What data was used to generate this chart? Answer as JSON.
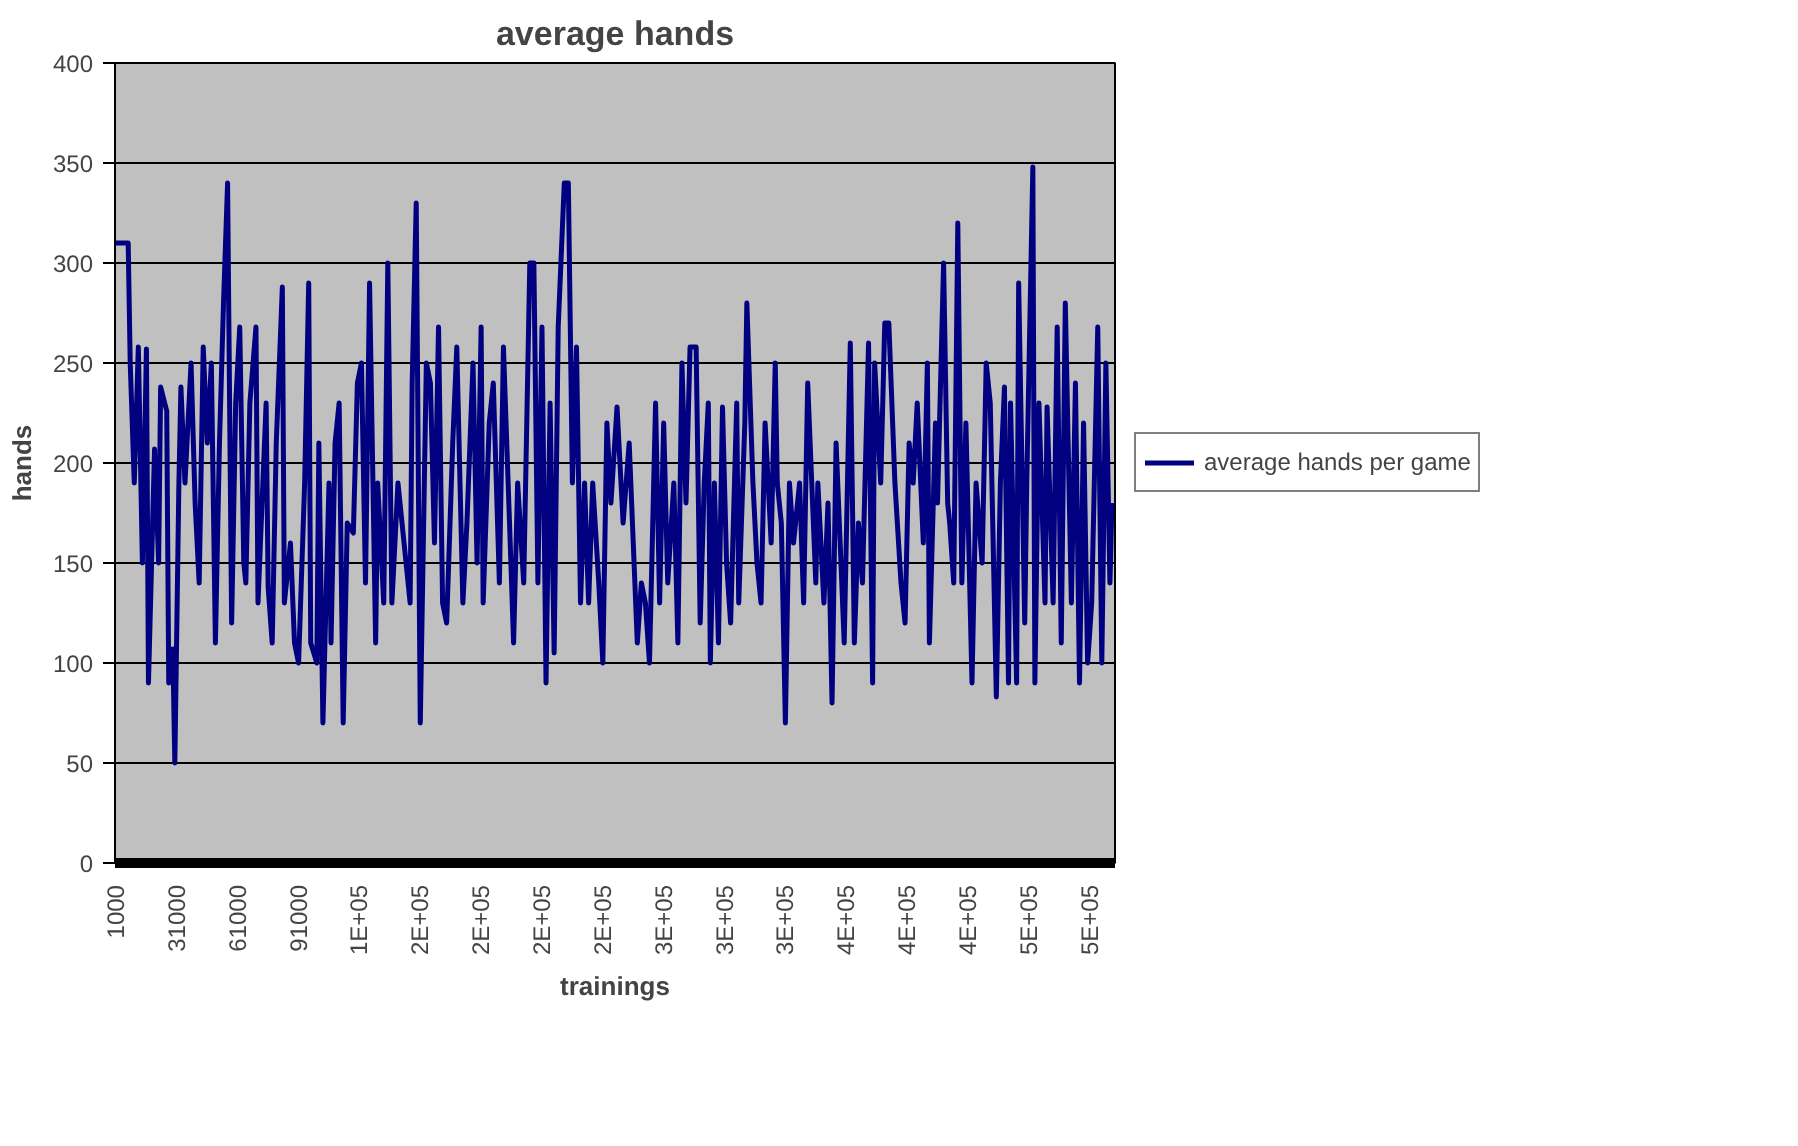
{
  "chart_data": {
    "type": "line",
    "title": "average hands",
    "xlabel": "trainings",
    "ylabel": "hands",
    "xlim": [
      500,
      493500
    ],
    "xticks": [
      {
        "value": 1000,
        "label": "1000"
      },
      {
        "value": 31000,
        "label": "31000"
      },
      {
        "value": 61000,
        "label": "61000"
      },
      {
        "value": 91000,
        "label": "91000"
      },
      {
        "value": 121000,
        "label": "1E+05"
      },
      {
        "value": 151000,
        "label": "2E+05"
      },
      {
        "value": 181000,
        "label": "2E+05"
      },
      {
        "value": 211000,
        "label": "2E+05"
      },
      {
        "value": 241000,
        "label": "2E+05"
      },
      {
        "value": 271000,
        "label": "3E+05"
      },
      {
        "value": 301000,
        "label": "3E+05"
      },
      {
        "value": 331000,
        "label": "3E+05"
      },
      {
        "value": 361000,
        "label": "4E+05"
      },
      {
        "value": 391000,
        "label": "4E+05"
      },
      {
        "value": 421000,
        "label": "4E+05"
      },
      {
        "value": 451000,
        "label": "5E+05"
      },
      {
        "value": 481000,
        "label": "5E+05"
      }
    ],
    "ylim": [
      0,
      400
    ],
    "yticks": [
      0,
      50,
      100,
      150,
      200,
      250,
      300,
      350,
      400
    ],
    "grid": "y",
    "legend": "right",
    "marker": "none",
    "line_style": "solid",
    "series": [
      {
        "name": "average hands per game",
        "color": "#000080",
        "x": [
          1000,
          7000,
          8000,
          10000,
          12000,
          14000,
          16000,
          17000,
          20000,
          22000,
          23000,
          26000,
          27000,
          29000,
          30000,
          32000,
          33000,
          35000,
          38000,
          40000,
          42000,
          44000,
          46000,
          48000,
          50000,
          52000,
          54000,
          56000,
          58000,
          60000,
          62000,
          64000,
          65000,
          67000,
          70000,
          71000,
          75000,
          76000,
          78000,
          80000,
          83000,
          84000,
          87000,
          89000,
          91000,
          94000,
          96000,
          97000,
          100000,
          101000,
          103000,
          106000,
          107000,
          109000,
          111000,
          113000,
          115000,
          118000,
          120000,
          122000,
          124000,
          126000,
          129000,
          130000,
          133000,
          135000,
          137000,
          140000,
          143000,
          146000,
          147000,
          149000,
          151000,
          154000,
          156000,
          158000,
          160000,
          162000,
          164000,
          167000,
          169000,
          172000,
          174000,
          177000,
          179000,
          181000,
          182000,
          185000,
          187000,
          190000,
          192000,
          195000,
          197000,
          199000,
          202000,
          205000,
          207000,
          209000,
          211000,
          213000,
          215000,
          217000,
          219000,
          222000,
          224000,
          226000,
          228000,
          230000,
          232000,
          234000,
          236000,
          239000,
          241000,
          243000,
          245000,
          248000,
          251000,
          254000,
          256000,
          258000,
          260000,
          262000,
          264000,
          267000,
          269000,
          271000,
          273000,
          276000,
          278000,
          280000,
          282000,
          284000,
          287000,
          289000,
          291000,
          293000,
          294000,
          296000,
          298000,
          300000,
          302000,
          304000,
          307000,
          308000,
          311000,
          312000,
          315000,
          317000,
          319000,
          321000,
          324000,
          326000,
          327000,
          329000,
          331000,
          333000,
          335000,
          338000,
          340000,
          342000,
          344000,
          346000,
          347000,
          350000,
          352000,
          354000,
          356000,
          358000,
          360000,
          363000,
          365000,
          367000,
          369000,
          372000,
          374000,
          375000,
          378000,
          380000,
          382000,
          385000,
          388000,
          390000,
          392000,
          394000,
          396000,
          399000,
          401000,
          402000,
          405000,
          406000,
          409000,
          411000,
          412000,
          414000,
          416000,
          418000,
          420000,
          423000,
          425000,
          428000,
          430000,
          432000,
          435000,
          437000,
          439000,
          441000,
          442000,
          445000,
          446000,
          449000,
          450000,
          453000,
          454000,
          456000,
          459000,
          460000,
          463000,
          465000,
          467000,
          469000,
          472000,
          474000,
          476000,
          478000,
          480000,
          482000,
          485000,
          487000,
          489000,
          491000,
          492000
        ],
        "values": [
          310,
          310,
          250,
          190,
          258,
          150,
          257,
          90,
          207,
          150,
          238,
          226,
          90,
          107,
          50,
          190,
          238,
          190,
          250,
          180,
          140,
          258,
          210,
          250,
          110,
          210,
          280,
          340,
          120,
          230,
          268,
          150,
          140,
          230,
          268,
          130,
          230,
          138,
          110,
          210,
          288,
          130,
          160,
          110,
          100,
          190,
          290,
          110,
          100,
          210,
          70,
          190,
          110,
          210,
          230,
          70,
          170,
          165,
          240,
          250,
          140,
          290,
          110,
          190,
          130,
          300,
          130,
          190,
          160,
          130,
          240,
          330,
          70,
          250,
          240,
          160,
          268,
          130,
          120,
          210,
          258,
          130,
          170,
          250,
          150,
          268,
          130,
          220,
          240,
          140,
          258,
          170,
          110,
          190,
          140,
          300,
          300,
          140,
          268,
          90,
          230,
          105,
          268,
          340,
          340,
          190,
          258,
          130,
          190,
          130,
          190,
          140,
          100,
          220,
          180,
          228,
          170,
          210,
          160,
          110,
          140,
          130,
          100,
          230,
          130,
          220,
          140,
          190,
          110,
          250,
          180,
          258,
          258,
          120,
          190,
          230,
          100,
          190,
          110,
          228,
          150,
          120,
          230,
          130,
          220,
          280,
          190,
          150,
          130,
          220,
          160,
          250,
          190,
          170,
          70,
          190,
          160,
          190,
          130,
          240,
          190,
          140,
          190,
          130,
          180,
          80,
          210,
          160,
          110,
          260,
          110,
          170,
          140,
          260,
          90,
          250,
          190,
          270,
          270,
          190,
          140,
          120,
          210,
          190,
          230,
          160,
          250,
          110,
          220,
          180,
          300,
          180,
          170,
          140,
          320,
          140,
          220,
          90,
          190,
          150,
          250,
          230,
          83,
          190,
          238,
          90,
          230,
          90,
          290,
          120,
          190,
          348,
          90,
          230,
          130,
          228,
          130,
          268,
          110,
          280,
          130,
          240,
          90,
          220,
          100,
          130,
          268,
          100,
          250,
          140,
          180
        ]
      }
    ]
  }
}
